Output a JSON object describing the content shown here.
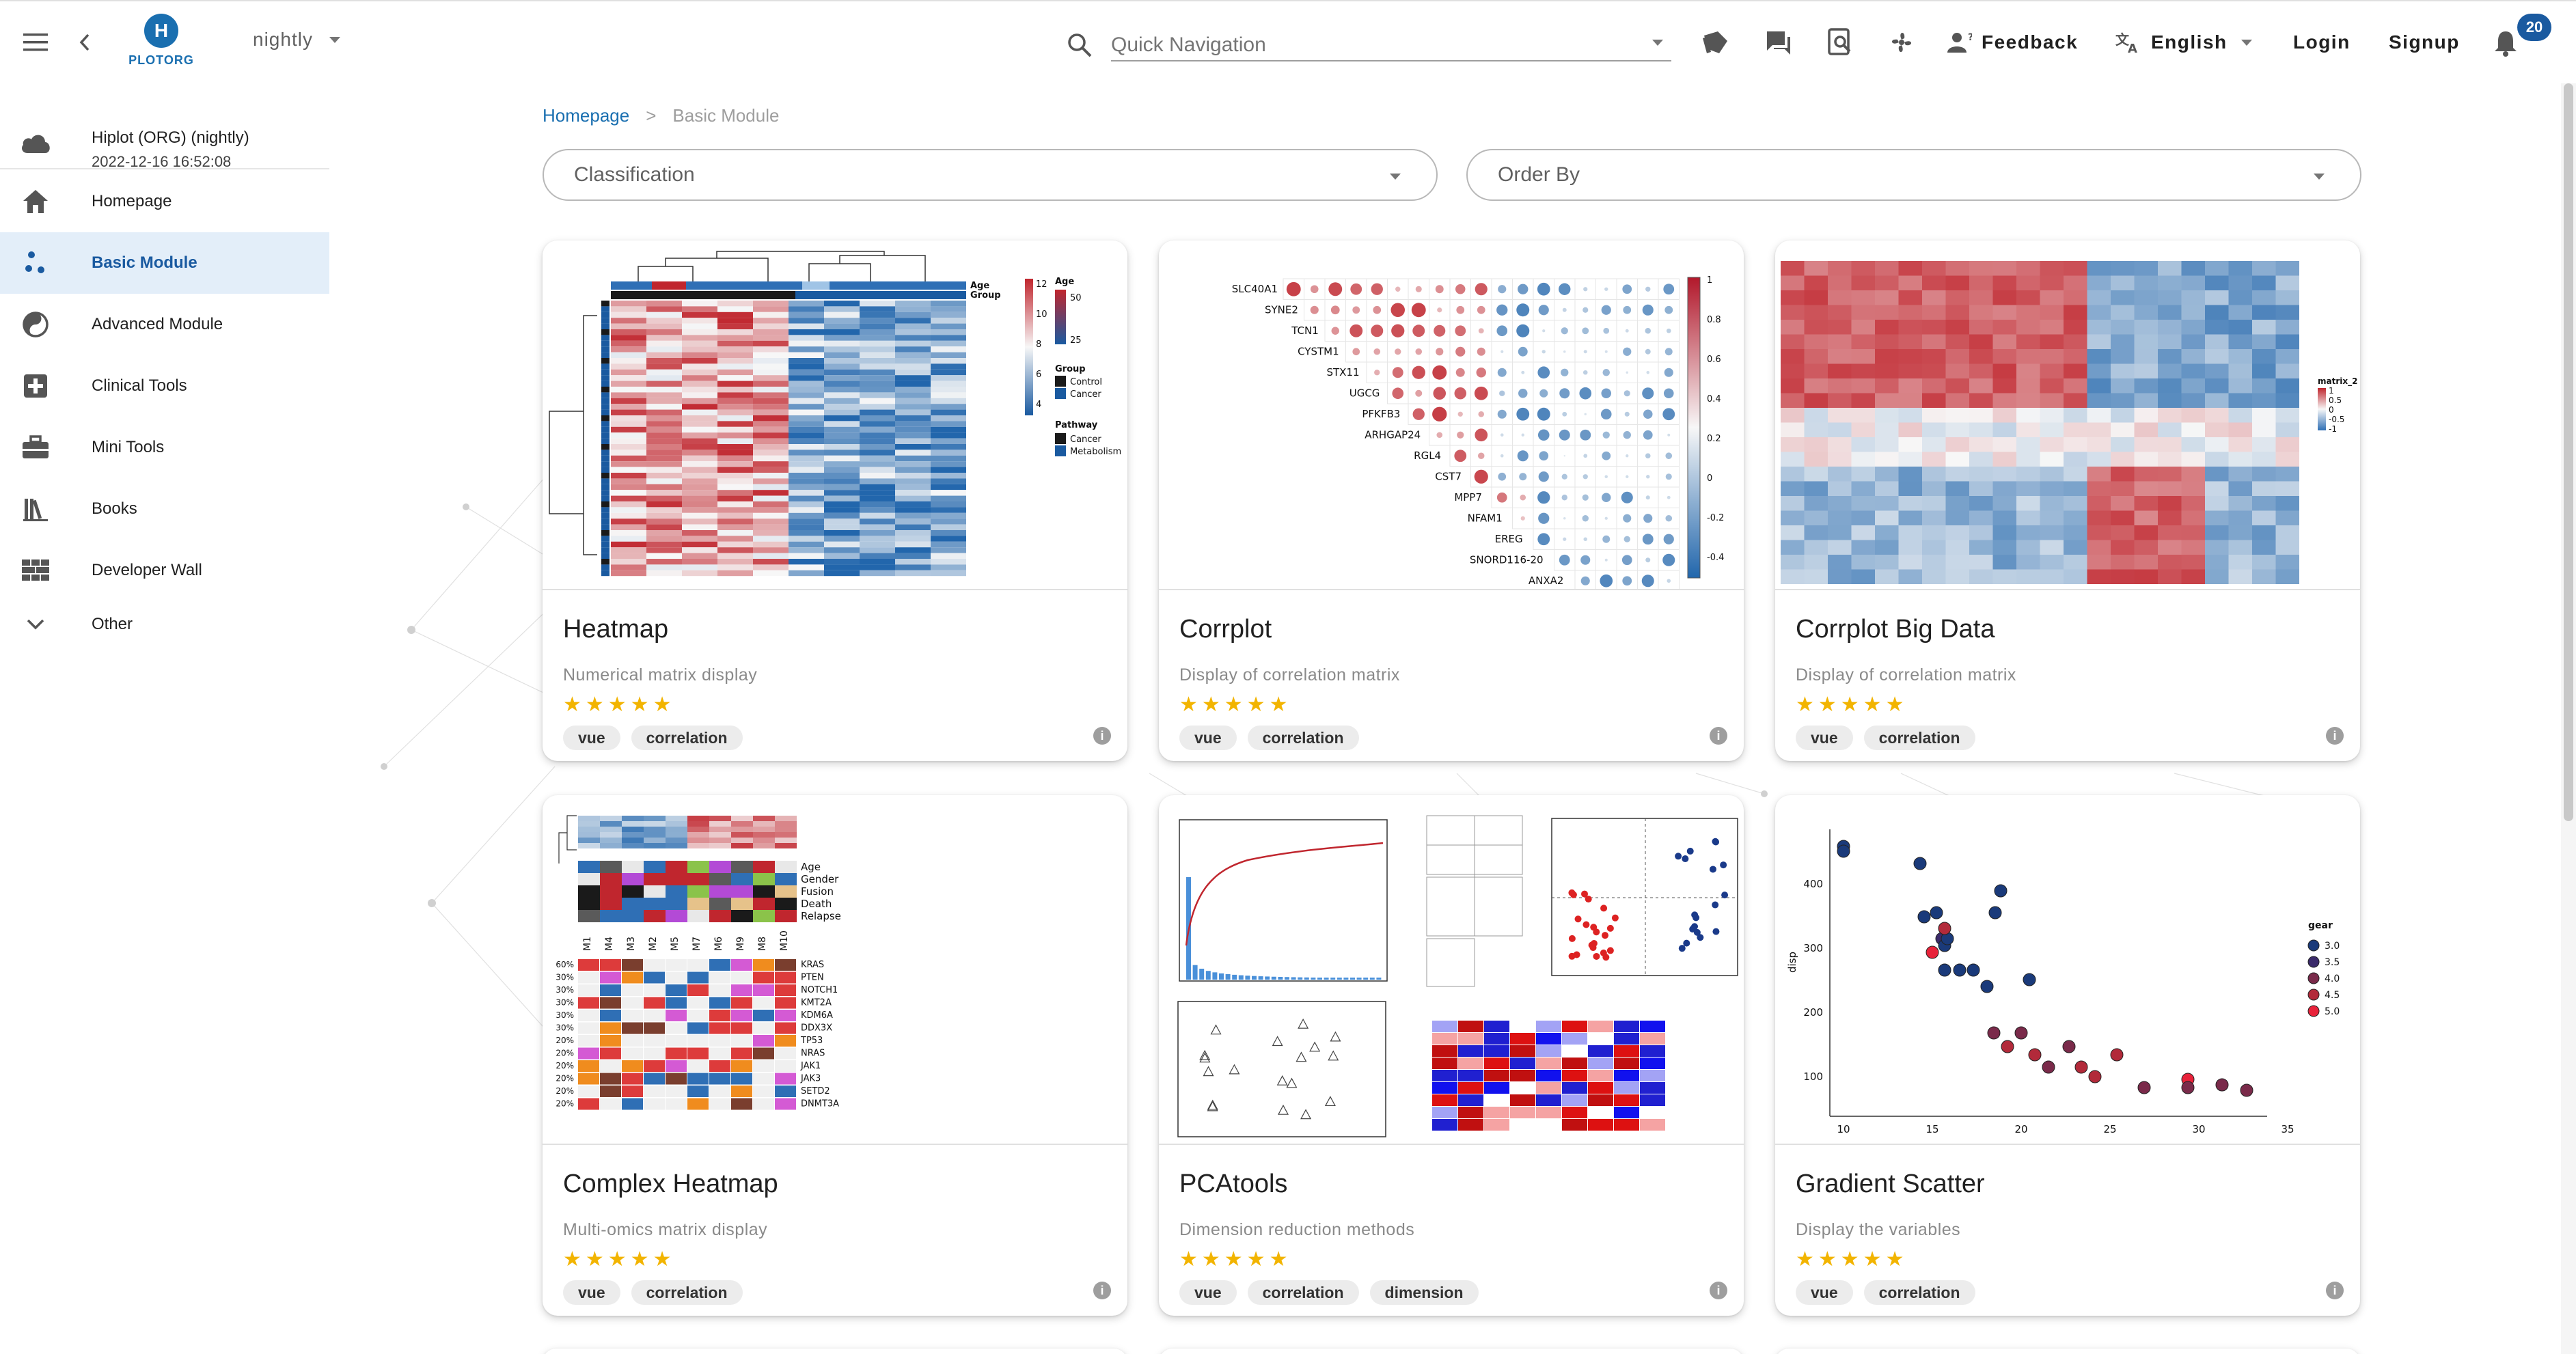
{
  "header": {
    "logo_letter": "H",
    "logo_text": "PLOTORG",
    "branch": "nightly",
    "search_placeholder": "Quick Navigation",
    "feedback_label": "Feedback",
    "language_label": "English",
    "login_label": "Login",
    "signup_label": "Signup",
    "notification_count": "20"
  },
  "sidebar": {
    "org_name": "Hiplot (ORG) (nightly)",
    "org_timestamp": "2022-12-16 16:52:08",
    "items": [
      {
        "label": "Homepage",
        "icon": "home-icon"
      },
      {
        "label": "Basic Module",
        "icon": "scatter-dots-icon"
      },
      {
        "label": "Advanced Module",
        "icon": "yin-yang-icon"
      },
      {
        "label": "Clinical Tools",
        "icon": "medical-cross-icon"
      },
      {
        "label": "Mini Tools",
        "icon": "toolbox-icon"
      },
      {
        "label": "Books",
        "icon": "books-icon"
      },
      {
        "label": "Developer Wall",
        "icon": "grid-wall-icon"
      },
      {
        "label": "Other",
        "icon": "chevron-down-icon"
      }
    ],
    "active": "Basic Module"
  },
  "breadcrumb": {
    "home": "Homepage",
    "separator": ">",
    "current": "Basic Module"
  },
  "filters": {
    "classification_label": "Classification",
    "order_by_label": "Order By"
  },
  "cards": [
    {
      "title": "Heatmap",
      "description": "Numerical matrix display",
      "stars": "★★★★★",
      "tags": [
        "vue",
        "correlation"
      ]
    },
    {
      "title": "Corrplot",
      "description": "Display of correlation matrix",
      "stars": "★★★★★",
      "tags": [
        "vue",
        "correlation"
      ]
    },
    {
      "title": "Corrplot Big Data",
      "description": "Display of correlation matrix",
      "stars": "★★★★★",
      "tags": [
        "vue",
        "correlation"
      ]
    },
    {
      "title": "Complex Heatmap",
      "description": "Multi-omics matrix display",
      "stars": "★★★★★",
      "tags": [
        "vue",
        "correlation"
      ]
    },
    {
      "title": "PCAtools",
      "description": "Dimension reduction methods",
      "stars": "★★★★★",
      "tags": [
        "vue",
        "correlation",
        "dimension"
      ]
    },
    {
      "title": "Gradient Scatter",
      "description": "Display the variables",
      "stars": "★★★★★",
      "tags": [
        "vue",
        "correlation"
      ]
    }
  ],
  "thumbnails": {
    "heatmap_legend": {
      "title_age": "Age",
      "title_group": "Group",
      "title_pathway": "Pathway",
      "age_values": [
        "50",
        "25"
      ],
      "group_values": [
        "Control",
        "Cancer"
      ],
      "pathway_values": [
        "Cancer",
        "Metabolism"
      ],
      "scale_values": [
        "12",
        "10",
        "8",
        "6",
        "4"
      ],
      "row_labels_top": [
        "Age",
        "Group"
      ]
    },
    "corrplot_rows": [
      "SLC40A1",
      "SYNE2",
      "TCN1",
      "CYSTM1",
      "STX11",
      "UGCG",
      "PFKFB3",
      "ARHGAP24",
      "RGL4",
      "CST7",
      "MPP7",
      "NFAM1",
      "EREG",
      "SNORD116-20",
      "ANXA2"
    ],
    "corrplot_scale": [
      "1",
      "0.8",
      "0.6",
      "0.4",
      "0.2",
      "0",
      "-0.2",
      "-0.4"
    ],
    "bigdata_legend": {
      "title": "matrix_2",
      "values": [
        "1",
        "0.5",
        "0",
        "-0.5",
        "-1"
      ]
    },
    "complex_tracks": [
      "Age",
      "Gender",
      "Fusion",
      "Death",
      "Relapse"
    ],
    "complex_columns": [
      "M1",
      "M4",
      "M3",
      "M2",
      "M5",
      "M7",
      "M6",
      "M9",
      "M8",
      "M10"
    ],
    "complex_genes": [
      "KRAS",
      "PTEN",
      "NOTCH1",
      "KMT2A",
      "KDM6A",
      "DDX3X",
      "TP53",
      "NRAS",
      "JAK1",
      "JAK3",
      "SETD2",
      "DNMT3A"
    ],
    "complex_pcts": [
      "60%",
      "30%",
      "30%",
      "30%",
      "30%",
      "30%",
      "20%",
      "20%",
      "20%",
      "20%",
      "20%",
      "20%"
    ],
    "gradient_scatter": {
      "legend_title": "gear",
      "legend_values": [
        "3.0",
        "3.5",
        "4.0",
        "4.5",
        "5.0"
      ],
      "ylabel": "disp",
      "y_ticks": [
        "400",
        "300",
        "200",
        "100"
      ],
      "x_ticks": [
        "10",
        "15",
        "20",
        "25",
        "30",
        "35"
      ]
    }
  }
}
